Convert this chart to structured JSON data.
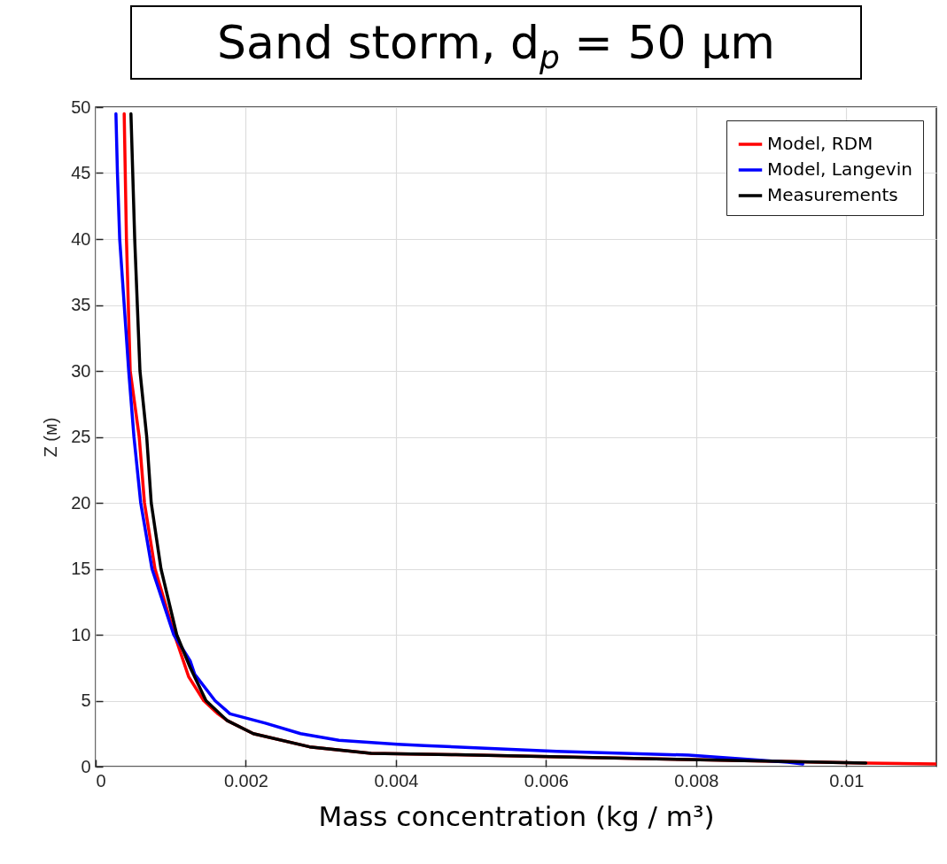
{
  "chart_data": {
    "type": "line",
    "title": "Sand storm, d$_{p}$ = 50 µm",
    "xlabel": "Mass concentration (kg / m³)",
    "ylabel": "Z (м)",
    "xlim": [
      0,
      0.0112
    ],
    "xticks": [
      0,
      0.002,
      0.004,
      0.006,
      0.008,
      0.01
    ],
    "ylim": [
      0,
      50
    ],
    "yticks": [
      0,
      5,
      10,
      15,
      20,
      25,
      30,
      35,
      40,
      45,
      50
    ],
    "grid": true,
    "legend": "top right",
    "line_style": "solid",
    "marker": "none",
    "series": [
      {
        "name": "Model, RDM",
        "color": "#ff0000",
        "x": [
          0.00038,
          0.00041,
          0.00046,
          0.00058,
          0.00065,
          0.00079,
          0.00105,
          0.00124,
          0.00144,
          0.00163,
          0.00175,
          0.0021,
          0.00285,
          0.00367,
          0.0048,
          0.0079,
          0.01026,
          0.0112
        ],
        "values": [
          49.5,
          40,
          30,
          25,
          20,
          15,
          10,
          6.8,
          5,
          4,
          3.5,
          2.5,
          1.5,
          1,
          0.9,
          0.54,
          0.27,
          0.2
        ]
      },
      {
        "name": "Model, Langevin",
        "color": "#0000ff",
        "x": [
          0.00027,
          0.00029,
          0.00032,
          0.00038,
          0.00044,
          0.00051,
          0.0006,
          0.00075,
          0.00104,
          0.00126,
          0.00132,
          0.00159,
          0.00179,
          0.00226,
          0.00273,
          0.00324,
          0.00402,
          0.00438,
          0.00614,
          0.0079,
          0.00922,
          0.00942
        ],
        "values": [
          49.5,
          45,
          40,
          35,
          30,
          25,
          20,
          15,
          10,
          8,
          7,
          5,
          4,
          3.3,
          2.5,
          2,
          1.7,
          1.6,
          1.15,
          0.87,
          0.34,
          0.2
        ]
      },
      {
        "name": "Measurements",
        "color": "#000000",
        "x": [
          0.00047,
          0.00052,
          0.00059,
          0.00068,
          0.00074,
          0.00087,
          0.00108,
          0.00126,
          0.00147,
          0.00175,
          0.0021,
          0.00285,
          0.00367,
          0.0048,
          0.0079,
          0.01026
        ],
        "values": [
          49.5,
          40,
          30,
          25,
          20,
          15,
          10,
          7.5,
          5,
          3.5,
          2.5,
          1.5,
          1,
          0.9,
          0.54,
          0.27
        ]
      }
    ]
  }
}
